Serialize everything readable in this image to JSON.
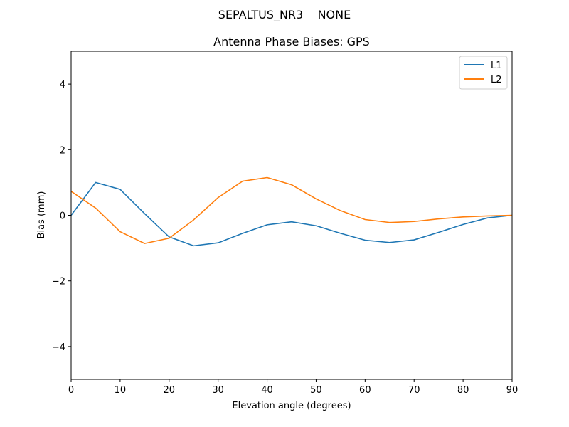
{
  "chart_data": {
    "type": "line",
    "suptitle": "SEPALTUS_NR3    NONE",
    "title": "Antenna Phase Biases: GPS",
    "xlabel": "Elevation angle (degrees)",
    "ylabel": "Bias (mm)",
    "xlim": [
      0,
      90
    ],
    "ylim": [
      -5,
      5
    ],
    "xticks": [
      0,
      10,
      20,
      30,
      40,
      50,
      60,
      70,
      80,
      90
    ],
    "yticks": [
      -4,
      -2,
      0,
      2,
      4
    ],
    "ytick_labels": [
      "−4",
      "−2",
      "0",
      "2",
      "4"
    ],
    "grid": false,
    "legend": "top-right",
    "x": [
      0,
      5,
      10,
      15,
      20,
      25,
      30,
      35,
      40,
      45,
      50,
      55,
      60,
      65,
      70,
      75,
      80,
      85,
      90
    ],
    "series": [
      {
        "name": "L1",
        "color": "#1f77b4",
        "values": [
          0.0,
          1.0,
          0.79,
          0.05,
          -0.66,
          -0.93,
          -0.84,
          -0.55,
          -0.29,
          -0.2,
          -0.32,
          -0.55,
          -0.76,
          -0.83,
          -0.75,
          -0.52,
          -0.28,
          -0.08,
          0.0
        ]
      },
      {
        "name": "L2",
        "color": "#ff7f0e",
        "values": [
          0.73,
          0.22,
          -0.5,
          -0.86,
          -0.7,
          -0.14,
          0.54,
          1.04,
          1.15,
          0.93,
          0.5,
          0.14,
          -0.13,
          -0.22,
          -0.19,
          -0.11,
          -0.05,
          -0.02,
          0.0
        ]
      }
    ]
  }
}
